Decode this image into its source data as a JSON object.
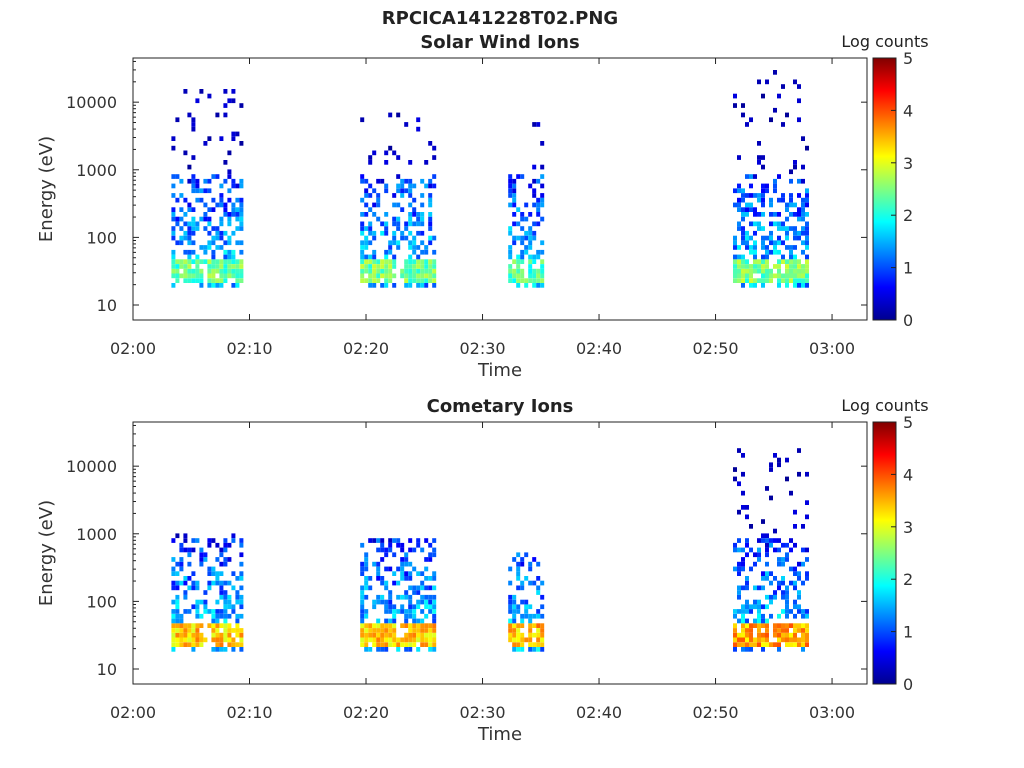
{
  "figure": {
    "title": "RPCICA141228T02.PNG"
  },
  "colorbar": {
    "label": "Log counts",
    "ticks": [
      "0",
      "1",
      "2",
      "3",
      "4",
      "5"
    ],
    "range": [
      0,
      5
    ],
    "colormap": "jet"
  },
  "chart_data": [
    {
      "type": "heatmap",
      "title": "Solar Wind Ions",
      "xlabel": "Time",
      "ylabel": "Energy (eV)",
      "x_ticks": [
        "02:00",
        "02:10",
        "02:20",
        "02:30",
        "02:40",
        "02:50",
        "03:00"
      ],
      "x_range_minutes": [
        0,
        63
      ],
      "y_ticks": [
        "10",
        "100",
        "1000",
        "10000"
      ],
      "y_scale": "log",
      "y_range_eV": [
        6,
        45000
      ],
      "bursts": [
        {
          "start_min": 3.3,
          "end_min": 9.3,
          "peak_log_counts": 2.8,
          "peak_energy_eV": 30,
          "max_energy_eV": 18000
        },
        {
          "start_min": 19.5,
          "end_min": 25.8,
          "peak_log_counts": 2.9,
          "peak_energy_eV": 30,
          "max_energy_eV": 6000
        },
        {
          "start_min": 32.2,
          "end_min": 35.0,
          "peak_log_counts": 2.7,
          "peak_energy_eV": 30,
          "max_energy_eV": 7000
        },
        {
          "start_min": 51.5,
          "end_min": 57.8,
          "peak_log_counts": 2.9,
          "peak_energy_eV": 30,
          "max_energy_eV": 28000
        }
      ]
    },
    {
      "type": "heatmap",
      "title": "Cometary Ions",
      "xlabel": "Time",
      "ylabel": "Energy (eV)",
      "x_ticks": [
        "02:00",
        "02:10",
        "02:20",
        "02:30",
        "02:40",
        "02:50",
        "03:00"
      ],
      "x_range_minutes": [
        0,
        63
      ],
      "y_ticks": [
        "10",
        "100",
        "1000",
        "10000"
      ],
      "y_scale": "log",
      "y_range_eV": [
        6,
        45000
      ],
      "bursts": [
        {
          "start_min": 3.3,
          "end_min": 9.4,
          "peak_log_counts": 3.8,
          "peak_energy_eV": 30,
          "max_energy_eV": 1000
        },
        {
          "start_min": 19.5,
          "end_min": 25.8,
          "peak_log_counts": 3.8,
          "peak_energy_eV": 30,
          "max_energy_eV": 800
        },
        {
          "start_min": 32.2,
          "end_min": 35.0,
          "peak_log_counts": 3.9,
          "peak_energy_eV": 30,
          "max_energy_eV": 500
        },
        {
          "start_min": 51.5,
          "end_min": 57.8,
          "peak_log_counts": 4.0,
          "peak_energy_eV": 30,
          "max_energy_eV": 16000
        }
      ]
    }
  ]
}
